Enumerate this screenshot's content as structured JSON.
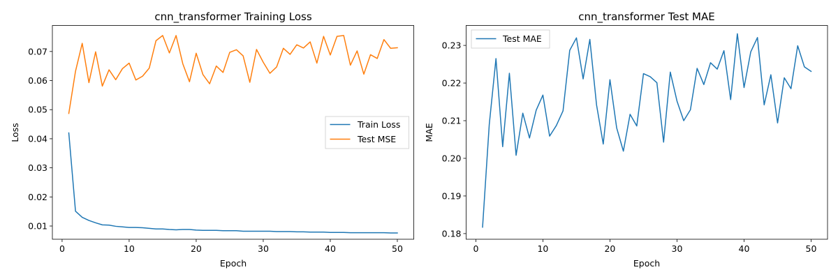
{
  "chart_data": [
    {
      "type": "line",
      "title": "cnn_transformer Training Loss",
      "xlabel": "Epoch",
      "ylabel": "Loss",
      "xlim": [
        -1.45,
        52.45
      ],
      "ylim": [
        0.00545,
        0.07895
      ],
      "xticks": [
        0,
        10,
        20,
        30,
        40,
        50
      ],
      "yticks": [
        0.01,
        0.02,
        0.03,
        0.04,
        0.05,
        0.06,
        0.07
      ],
      "ytick_labels": [
        "0.01",
        "0.02",
        "0.03",
        "0.04",
        "0.05",
        "0.06",
        "0.07"
      ],
      "legend_position": "center-right",
      "grid": false,
      "x": [
        1,
        2,
        3,
        4,
        5,
        6,
        7,
        8,
        9,
        10,
        11,
        12,
        13,
        14,
        15,
        16,
        17,
        18,
        19,
        20,
        21,
        22,
        23,
        24,
        25,
        26,
        27,
        28,
        29,
        30,
        31,
        32,
        33,
        34,
        35,
        36,
        37,
        38,
        39,
        40,
        41,
        42,
        43,
        44,
        45,
        46,
        47,
        48,
        49,
        50
      ],
      "series": [
        {
          "name": "Train Loss",
          "color": "#1f77b4",
          "values": [
            0.042,
            0.0151,
            0.013,
            0.0119,
            0.0111,
            0.0104,
            0.0103,
            0.0099,
            0.0097,
            0.0095,
            0.0095,
            0.0094,
            0.0092,
            0.009,
            0.009,
            0.0088,
            0.0087,
            0.0088,
            0.0088,
            0.0086,
            0.0085,
            0.0085,
            0.0085,
            0.0084,
            0.0084,
            0.0084,
            0.0082,
            0.0082,
            0.0082,
            0.0082,
            0.0082,
            0.0081,
            0.0081,
            0.0081,
            0.008,
            0.008,
            0.0079,
            0.0079,
            0.0079,
            0.0078,
            0.0078,
            0.0078,
            0.0077,
            0.0077,
            0.0077,
            0.0077,
            0.0077,
            0.0077,
            0.0076,
            0.0076
          ]
        },
        {
          "name": "Test MSE",
          "color": "#ff7f0e",
          "values": [
            0.0487,
            0.0632,
            0.0728,
            0.0593,
            0.0699,
            0.0581,
            0.0637,
            0.0603,
            0.0641,
            0.066,
            0.0602,
            0.0615,
            0.0643,
            0.0737,
            0.0755,
            0.0695,
            0.0755,
            0.0658,
            0.0596,
            0.0694,
            0.0621,
            0.0589,
            0.065,
            0.0628,
            0.0697,
            0.0706,
            0.0685,
            0.0594,
            0.0707,
            0.0663,
            0.0625,
            0.0647,
            0.0711,
            0.069,
            0.0723,
            0.0712,
            0.0733,
            0.066,
            0.0752,
            0.0688,
            0.0752,
            0.0755,
            0.0653,
            0.0702,
            0.0622,
            0.0689,
            0.0676,
            0.0741,
            0.0711,
            0.0713
          ]
        }
      ]
    },
    {
      "type": "line",
      "title": "cnn_transformer Test MAE",
      "xlabel": "Epoch",
      "ylabel": "MAE",
      "xlim": [
        -1.45,
        52.45
      ],
      "ylim": [
        0.1785,
        0.2353
      ],
      "xticks": [
        0,
        10,
        20,
        30,
        40,
        50
      ],
      "yticks": [
        0.18,
        0.19,
        0.2,
        0.21,
        0.22,
        0.23
      ],
      "ytick_labels": [
        "0.18",
        "0.19",
        "0.20",
        "0.21",
        "0.22",
        "0.23"
      ],
      "legend_position": "upper-left",
      "grid": false,
      "x": [
        1,
        2,
        3,
        4,
        5,
        6,
        7,
        8,
        9,
        10,
        11,
        12,
        13,
        14,
        15,
        16,
        17,
        18,
        19,
        20,
        21,
        22,
        23,
        24,
        25,
        26,
        27,
        28,
        29,
        30,
        31,
        32,
        33,
        34,
        35,
        36,
        37,
        38,
        39,
        40,
        41,
        42,
        43,
        44,
        45,
        46,
        47,
        48,
        49,
        50
      ],
      "series": [
        {
          "name": "Test MAE",
          "color": "#1f77b4",
          "values": [
            0.1817,
            0.209,
            0.2265,
            0.2031,
            0.2226,
            0.2008,
            0.212,
            0.2054,
            0.2128,
            0.2168,
            0.2059,
            0.2087,
            0.2126,
            0.2287,
            0.232,
            0.2211,
            0.2316,
            0.2142,
            0.2038,
            0.2209,
            0.2081,
            0.2019,
            0.2117,
            0.2086,
            0.2225,
            0.2217,
            0.2201,
            0.2043,
            0.2229,
            0.2152,
            0.21,
            0.2129,
            0.2239,
            0.2196,
            0.2254,
            0.2237,
            0.2286,
            0.2156,
            0.2331,
            0.2188,
            0.2283,
            0.2321,
            0.2142,
            0.2222,
            0.2094,
            0.2214,
            0.2185,
            0.2299,
            0.2243,
            0.2231
          ]
        }
      ]
    }
  ]
}
